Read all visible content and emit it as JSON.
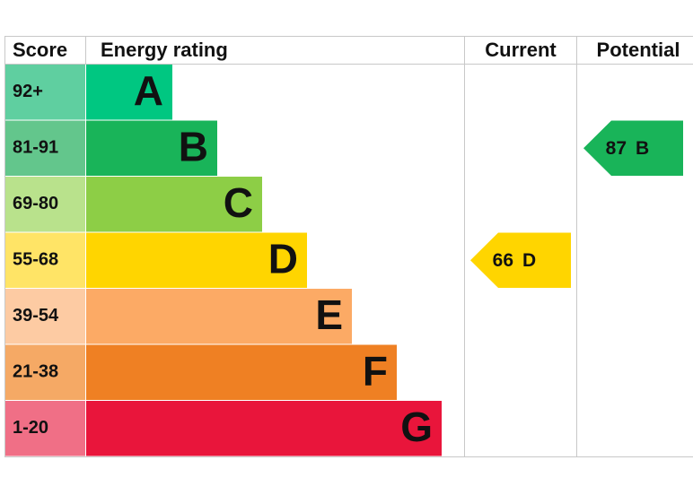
{
  "chart_data": {
    "type": "epc",
    "headers": {
      "score": "Score",
      "rating": "Energy rating",
      "current": "Current",
      "potential": "Potential"
    },
    "bands": [
      {
        "score": "92+",
        "letter": "A",
        "color": "#00c781",
        "tint": "#5fcfa0"
      },
      {
        "score": "81-91",
        "letter": "B",
        "color": "#19b459",
        "tint": "#63c68c"
      },
      {
        "score": "69-80",
        "letter": "C",
        "color": "#8dce46",
        "tint": "#b9e28c"
      },
      {
        "score": "55-68",
        "letter": "D",
        "color": "#ffd500",
        "tint": "#ffe466"
      },
      {
        "score": "39-54",
        "letter": "E",
        "color": "#fcaa65",
        "tint": "#fdcba3"
      },
      {
        "score": "21-38",
        "letter": "F",
        "color": "#ef8023",
        "tint": "#f5a965"
      },
      {
        "score": "1-20",
        "letter": "G",
        "color": "#e9153b",
        "tint": "#f06f86"
      }
    ],
    "current": {
      "value": 66,
      "band": "D"
    },
    "potential": {
      "value": 87,
      "band": "B"
    }
  }
}
